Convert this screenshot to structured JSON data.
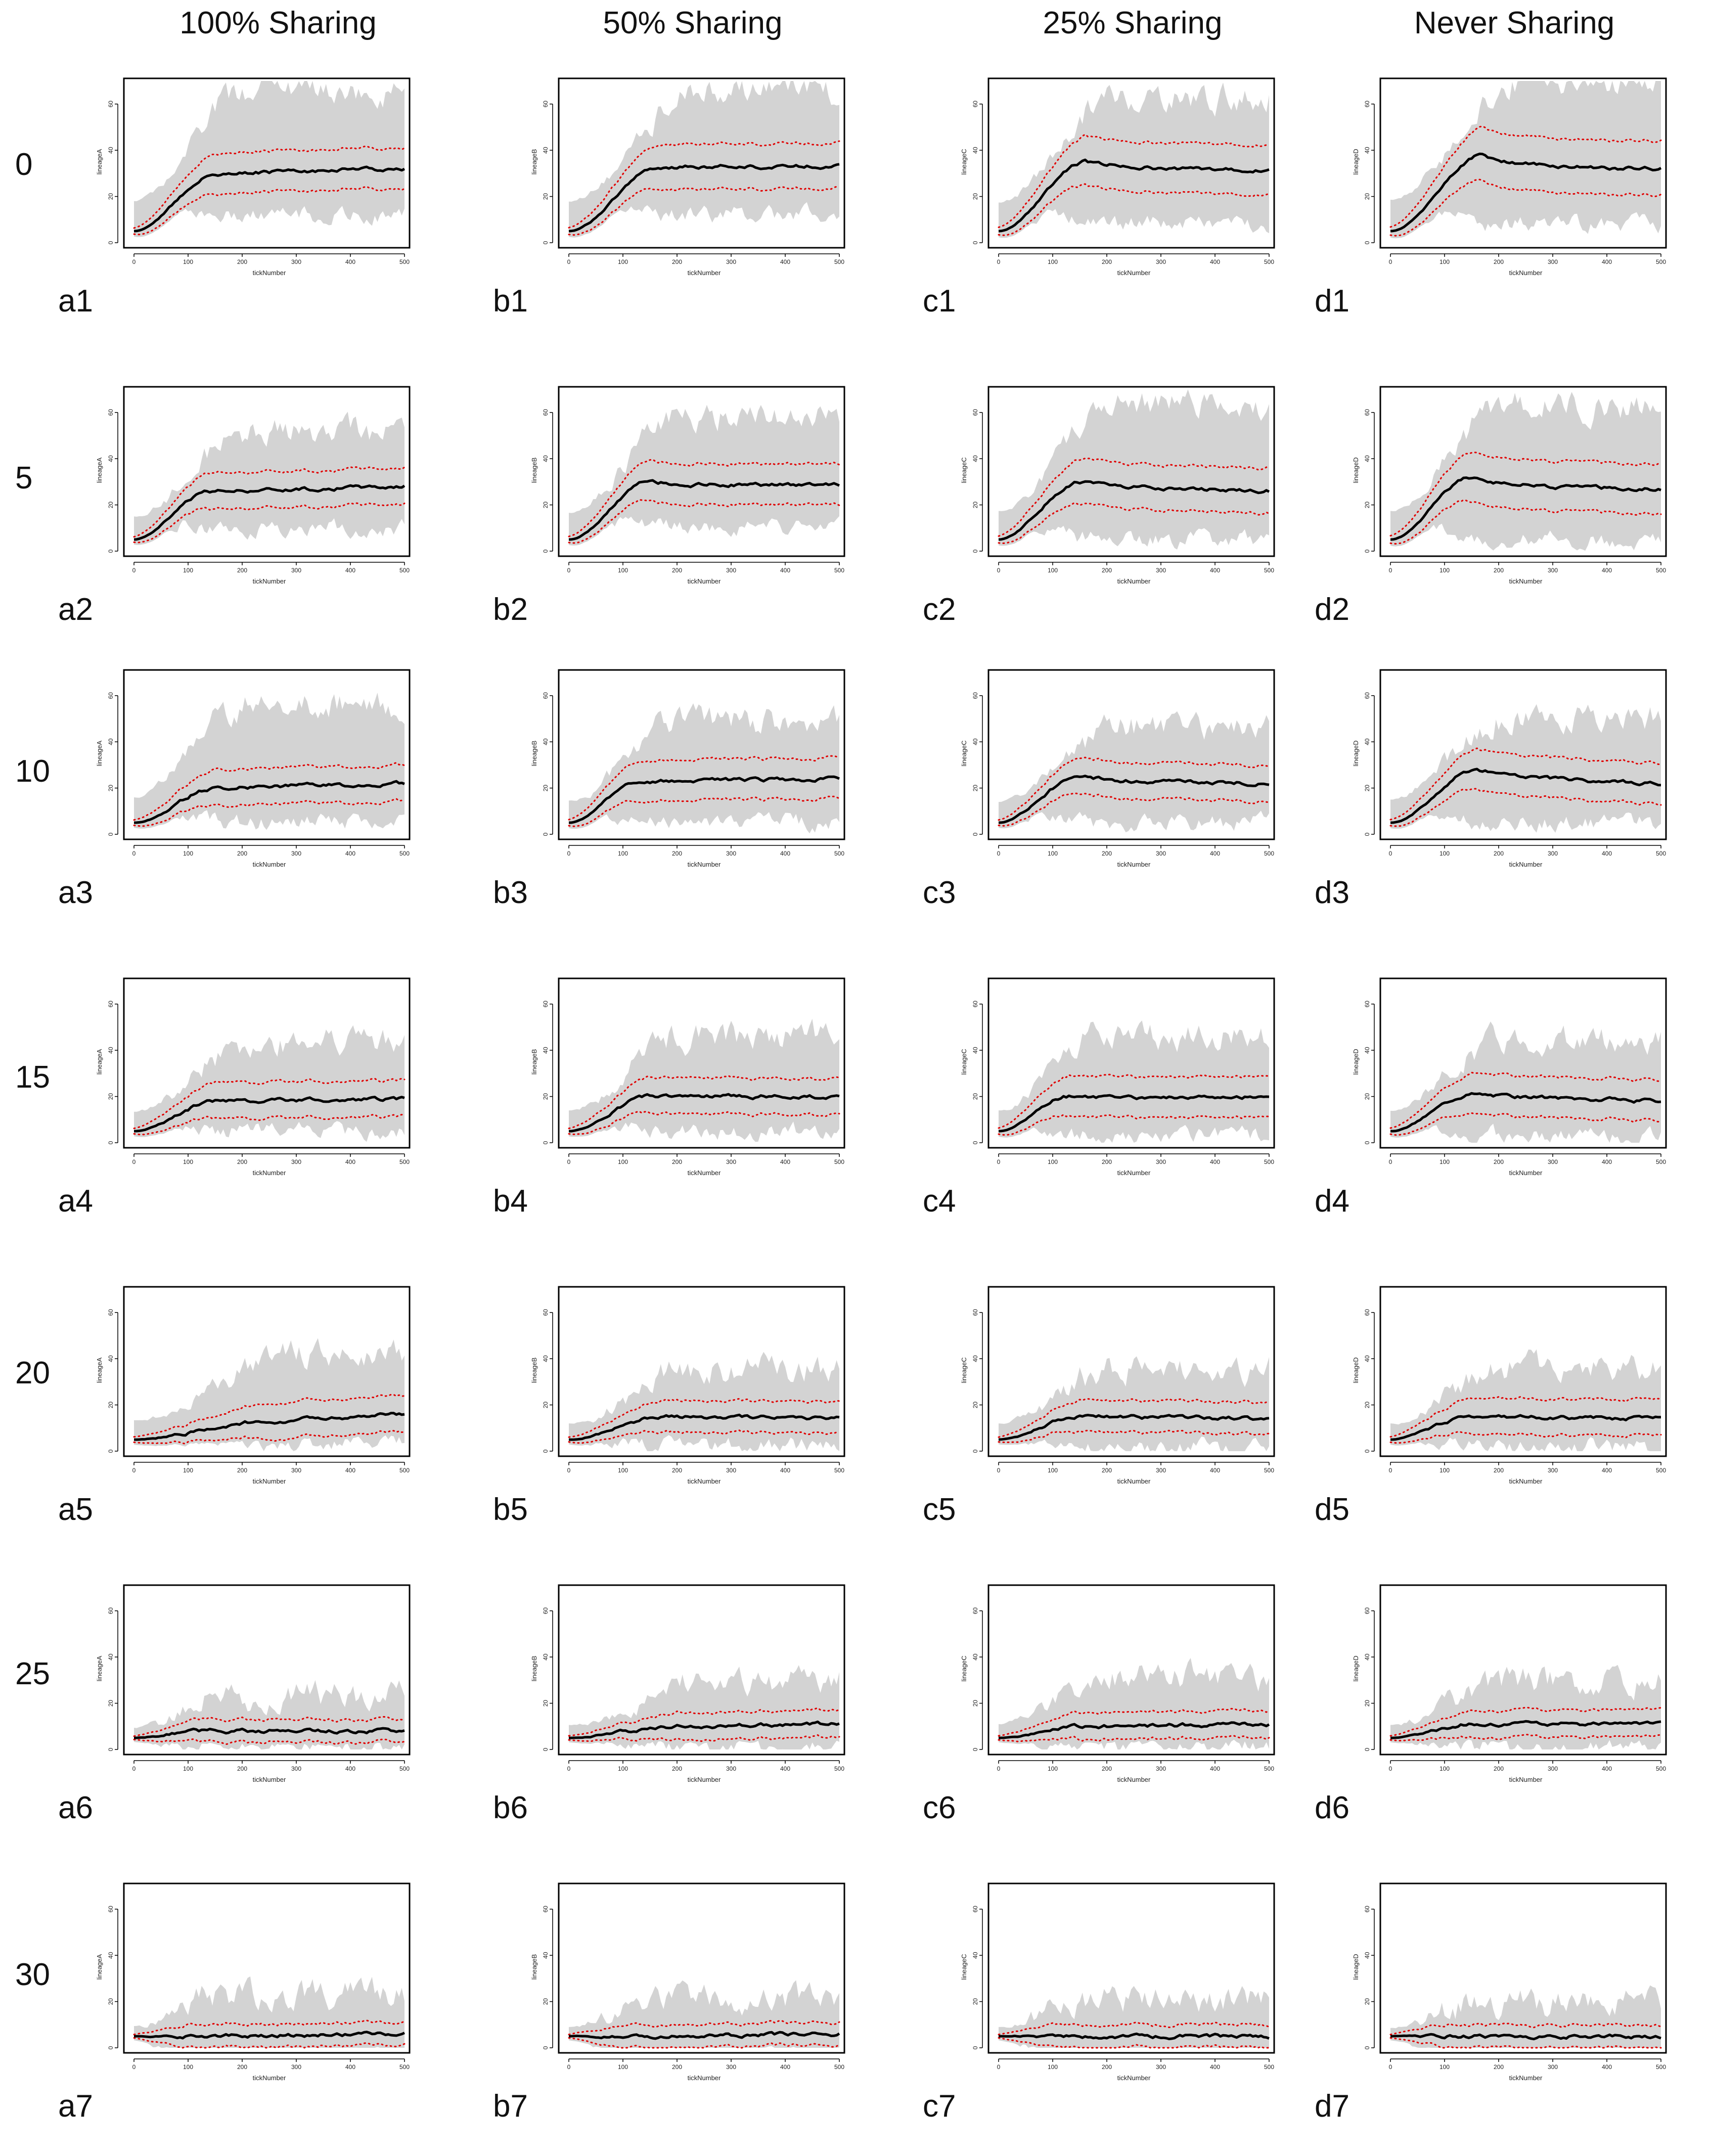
{
  "column_headers": [
    "100% Sharing",
    "50% Sharing",
    "25% Sharing",
    "Never Sharing"
  ],
  "row_headers": [
    "0",
    "5",
    "10",
    "15",
    "20",
    "25",
    "30"
  ],
  "colors": {
    "band": "#d3d3d3",
    "mean": "#000000",
    "quantile": "#e00000",
    "frame": "#000000"
  },
  "chart_data": {
    "type": "line",
    "title": "",
    "x_range": [
      0,
      500
    ],
    "x_ticks": [
      0,
      100,
      200,
      300,
      400,
      500
    ],
    "y_range": [
      0,
      70
    ],
    "y_ticks": [
      0,
      20,
      40,
      60
    ],
    "xlabel": "tickNumber",
    "ylabels_by_column": [
      "lineageA",
      "lineageB",
      "lineageC",
      "lineageD"
    ],
    "series_description": [
      "grey band: min-max envelope",
      "black line: mean",
      "red dotted lines: lower and upper quantile"
    ],
    "panels": [
      {
        "label": "a1",
        "row": 0,
        "col": 0,
        "start": 5,
        "plateau": 30,
        "end": 32,
        "rise_end": 150,
        "spread": 9,
        "band_hi": 65,
        "band_lo": 12,
        "peak_extra": 0
      },
      {
        "label": "b1",
        "row": 0,
        "col": 1,
        "start": 5,
        "plateau": 33,
        "end": 33,
        "rise_end": 170,
        "spread": 10,
        "band_hi": 64,
        "band_lo": 12,
        "peak_extra": 0
      },
      {
        "label": "c1",
        "row": 0,
        "col": 2,
        "start": 5,
        "plateau": 33,
        "end": 31,
        "rise_end": 160,
        "spread": 11,
        "band_hi": 62,
        "band_lo": 8,
        "peak_extra": 2
      },
      {
        "label": "d1",
        "row": 0,
        "col": 3,
        "start": 5,
        "plateau": 33,
        "end": 32,
        "rise_end": 170,
        "spread": 12,
        "band_hi": 68,
        "band_lo": 8,
        "peak_extra": 5
      },
      {
        "label": "a2",
        "row": 1,
        "col": 0,
        "start": 5,
        "plateau": 26,
        "end": 28,
        "rise_end": 140,
        "spread": 8,
        "band_hi": 50,
        "band_lo": 10,
        "peak_extra": 0
      },
      {
        "label": "b2",
        "row": 1,
        "col": 1,
        "start": 5,
        "plateau": 28,
        "end": 29,
        "rise_end": 150,
        "spread": 9,
        "band_hi": 58,
        "band_lo": 10,
        "peak_extra": 2
      },
      {
        "label": "c2",
        "row": 1,
        "col": 2,
        "start": 5,
        "plateau": 28,
        "end": 26,
        "rise_end": 150,
        "spread": 10,
        "band_hi": 62,
        "band_lo": 5,
        "peak_extra": 2
      },
      {
        "label": "d2",
        "row": 1,
        "col": 3,
        "start": 5,
        "plateau": 28,
        "end": 27,
        "rise_end": 150,
        "spread": 11,
        "band_hi": 62,
        "band_lo": 5,
        "peak_extra": 4
      },
      {
        "label": "a3",
        "row": 2,
        "col": 0,
        "start": 5,
        "plateau": 20,
        "end": 22,
        "rise_end": 150,
        "spread": 8,
        "band_hi": 55,
        "band_lo": 5,
        "peak_extra": 0
      },
      {
        "label": "b3",
        "row": 2,
        "col": 1,
        "start": 5,
        "plateau": 23,
        "end": 24,
        "rise_end": 130,
        "spread": 9,
        "band_hi": 48,
        "band_lo": 5,
        "peak_extra": 0
      },
      {
        "label": "c3",
        "row": 2,
        "col": 2,
        "start": 5,
        "plateau": 23,
        "end": 22,
        "rise_end": 150,
        "spread": 8,
        "band_hi": 45,
        "band_lo": 5,
        "peak_extra": 2
      },
      {
        "label": "d3",
        "row": 2,
        "col": 3,
        "start": 5,
        "plateau": 25,
        "end": 22,
        "rise_end": 160,
        "spread": 9,
        "band_hi": 50,
        "band_lo": 5,
        "peak_extra": 3
      },
      {
        "label": "a4",
        "row": 3,
        "col": 0,
        "start": 5,
        "plateau": 18,
        "end": 19,
        "rise_end": 150,
        "spread": 8,
        "band_hi": 42,
        "band_lo": 5,
        "peak_extra": 0
      },
      {
        "label": "b4",
        "row": 3,
        "col": 1,
        "start": 5,
        "plateau": 20,
        "end": 20,
        "rise_end": 150,
        "spread": 8,
        "band_hi": 45,
        "band_lo": 5,
        "peak_extra": 0
      },
      {
        "label": "c4",
        "row": 3,
        "col": 2,
        "start": 5,
        "plateau": 19,
        "end": 20,
        "rise_end": 130,
        "spread": 9,
        "band_hi": 45,
        "band_lo": 3,
        "peak_extra": 1
      },
      {
        "label": "d4",
        "row": 3,
        "col": 3,
        "start": 5,
        "plateau": 20,
        "end": 18,
        "rise_end": 150,
        "spread": 9,
        "band_hi": 44,
        "band_lo": 3,
        "peak_extra": 1
      },
      {
        "label": "a5",
        "row": 4,
        "col": 0,
        "start": 5,
        "plateau": 13,
        "end": 16,
        "rise_end": 250,
        "spread": 8,
        "band_hi": 42,
        "band_lo": 3,
        "peak_extra": 0
      },
      {
        "label": "b5",
        "row": 4,
        "col": 1,
        "start": 5,
        "plateau": 15,
        "end": 14,
        "rise_end": 170,
        "spread": 7,
        "band_hi": 35,
        "band_lo": 2,
        "peak_extra": 0
      },
      {
        "label": "c5",
        "row": 4,
        "col": 2,
        "start": 5,
        "plateau": 15,
        "end": 14,
        "rise_end": 150,
        "spread": 7,
        "band_hi": 35,
        "band_lo": 2,
        "peak_extra": 0
      },
      {
        "label": "d5",
        "row": 4,
        "col": 3,
        "start": 5,
        "plateau": 15,
        "end": 14,
        "rise_end": 150,
        "spread": 8,
        "band_hi": 35,
        "band_lo": 2,
        "peak_extra": 0
      },
      {
        "label": "a6",
        "row": 5,
        "col": 0,
        "start": 5,
        "plateau": 8,
        "end": 8,
        "rise_end": 120,
        "spread": 5,
        "band_hi": 22,
        "band_lo": 1,
        "peak_extra": 0
      },
      {
        "label": "b6",
        "row": 5,
        "col": 1,
        "start": 5,
        "plateau": 10,
        "end": 11,
        "rise_end": 200,
        "spread": 6,
        "band_hi": 28,
        "band_lo": 1,
        "peak_extra": 0
      },
      {
        "label": "c6",
        "row": 5,
        "col": 2,
        "start": 5,
        "plateau": 10,
        "end": 11,
        "rise_end": 150,
        "spread": 6,
        "band_hi": 30,
        "band_lo": 1,
        "peak_extra": 0
      },
      {
        "label": "d6",
        "row": 5,
        "col": 3,
        "start": 5,
        "plateau": 11,
        "end": 11,
        "rise_end": 150,
        "spread": 6,
        "band_hi": 28,
        "band_lo": 1,
        "peak_extra": 0
      },
      {
        "label": "a7",
        "row": 6,
        "col": 0,
        "start": 5,
        "plateau": 5,
        "end": 6,
        "rise_end": 100,
        "spread": 5,
        "band_hi": 22,
        "band_lo": 0,
        "peak_extra": 0
      },
      {
        "label": "b7",
        "row": 6,
        "col": 1,
        "start": 5,
        "plateau": 5,
        "end": 6,
        "rise_end": 100,
        "spread": 5,
        "band_hi": 20,
        "band_lo": 0,
        "peak_extra": 0
      },
      {
        "label": "c7",
        "row": 6,
        "col": 2,
        "start": 5,
        "plateau": 5,
        "end": 5,
        "rise_end": 100,
        "spread": 5,
        "band_hi": 20,
        "band_lo": 0,
        "peak_extra": 0
      },
      {
        "label": "d7",
        "row": 6,
        "col": 3,
        "start": 5,
        "plateau": 5,
        "end": 5,
        "rise_end": 100,
        "spread": 5,
        "band_hi": 18,
        "band_lo": 0,
        "peak_extra": 0
      }
    ]
  }
}
